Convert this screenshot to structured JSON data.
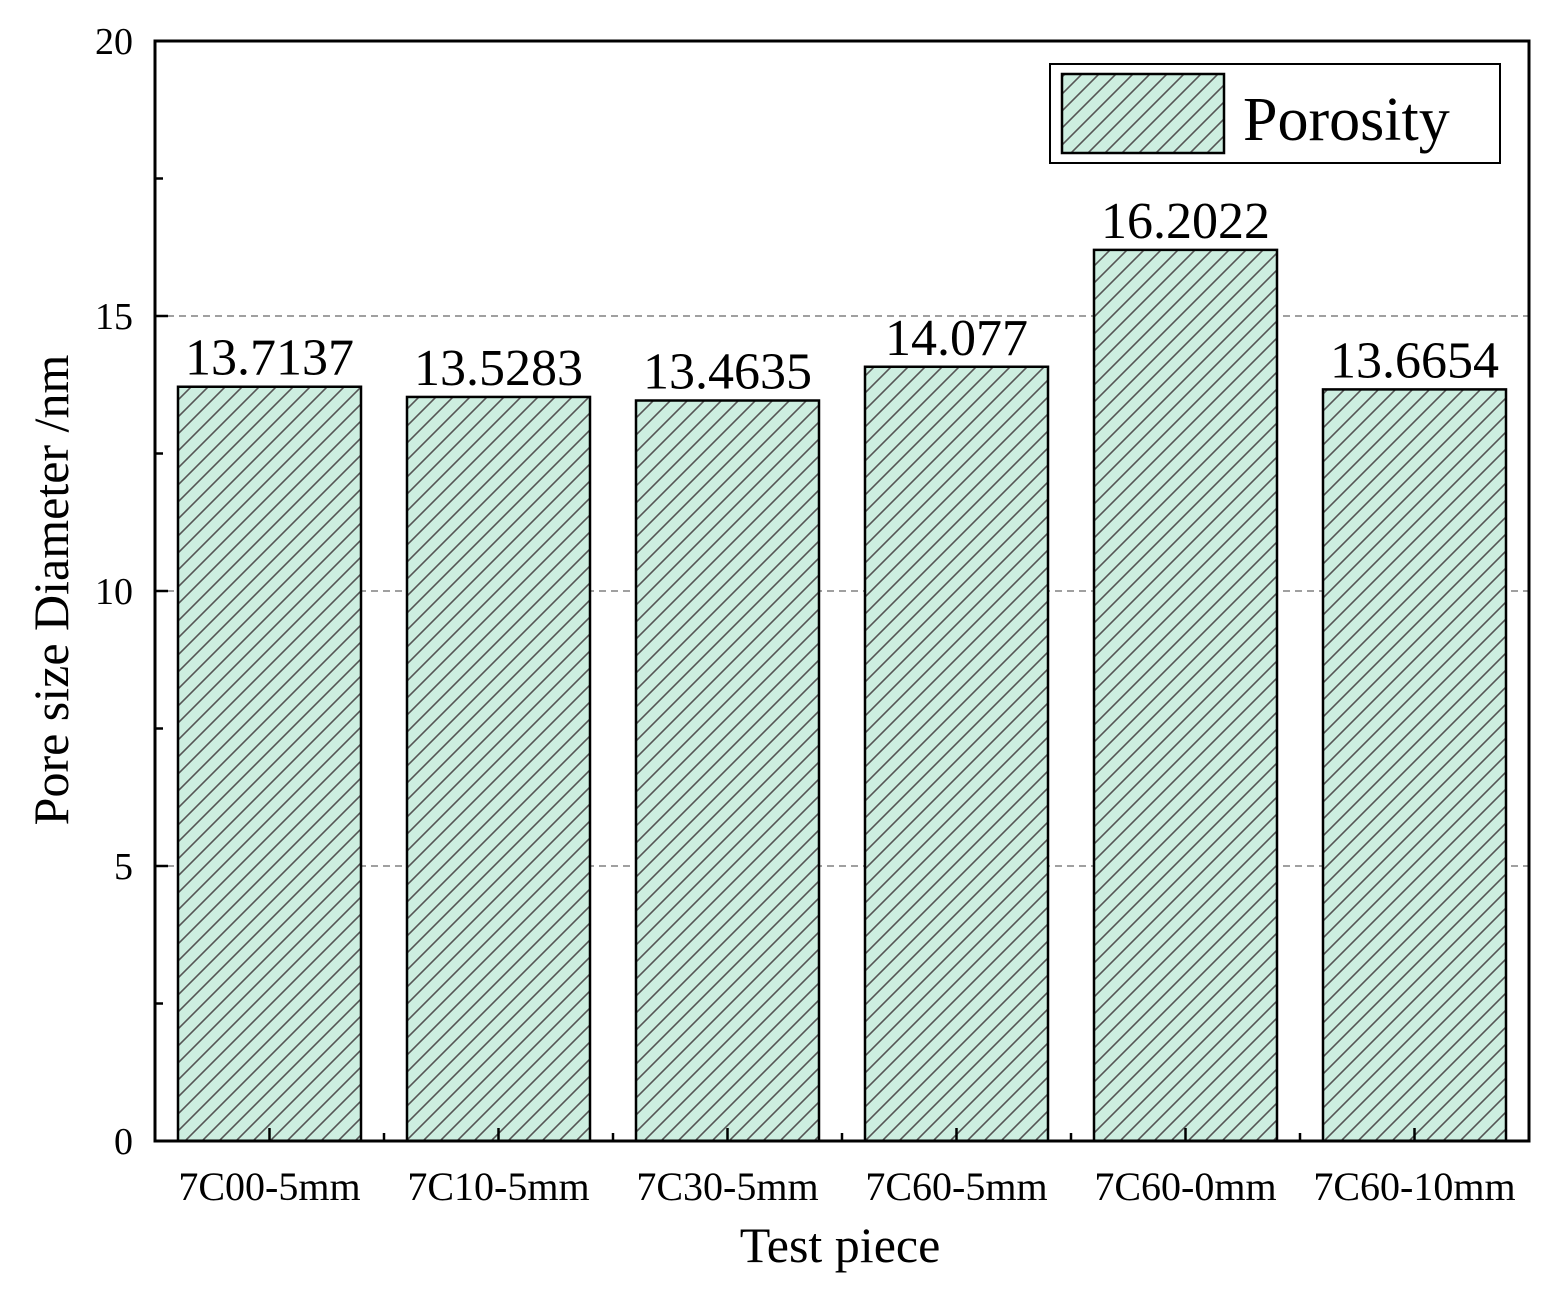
{
  "chart_data": {
    "type": "bar",
    "title": "",
    "xlabel": "Test piece",
    "ylabel": "Pore size Diameter /nm",
    "categories": [
      "7C00-5mm",
      "7C10-5mm",
      "7C30-5mm",
      "7C60-5mm",
      "7C60-0mm",
      "7C60-10mm"
    ],
    "series": [
      {
        "name": "Porosity",
        "values": [
          13.7137,
          13.5283,
          13.4635,
          14.077,
          16.2022,
          13.6654
        ],
        "value_labels": [
          "13.7137",
          "13.5283",
          "13.4635",
          "14.077",
          "16.2022",
          "13.6654"
        ]
      }
    ],
    "ylim": [
      0,
      20
    ],
    "yticks": [
      0,
      5,
      10,
      15,
      20
    ],
    "ytick_labels": [
      "0",
      "5",
      "10",
      "15",
      "20"
    ],
    "grid": "horizontal dashed at major ticks",
    "legend": {
      "position": "top-right"
    },
    "colors": {
      "bar_fill": "#cdeee0",
      "hatch": "#555555",
      "grid": "#808080",
      "axis": "#000000"
    },
    "bar_pattern": "diagonal-hatch"
  }
}
